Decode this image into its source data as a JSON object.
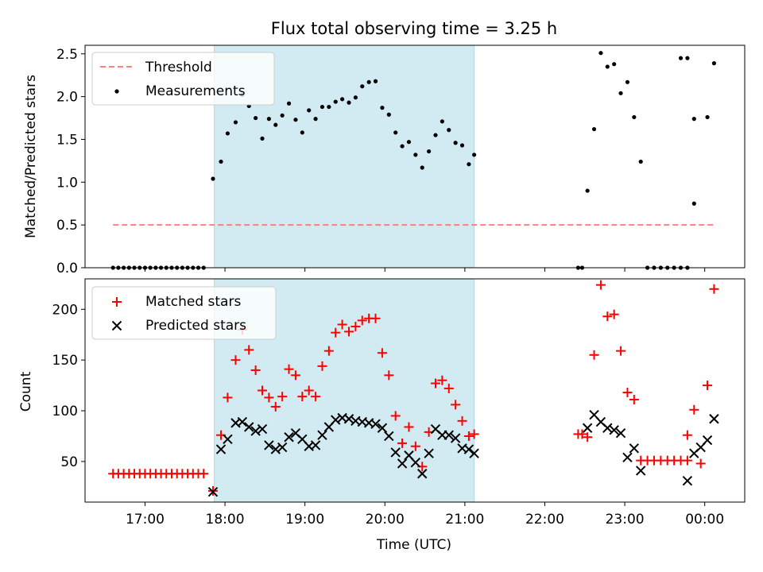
{
  "title": "Flux total observing time = 3.25 h",
  "colors": {
    "threshold": "#ff7f7f",
    "measurement": "#000000",
    "matched": "#ff0000",
    "predicted": "#000000",
    "shade": "#add8e6"
  },
  "chart_data": [
    {
      "type": "scatter",
      "panel": "top",
      "ylabel": "Matched/Predicted stars",
      "xlim": [
        "16:15",
        "00:30"
      ],
      "ylim": [
        0,
        2.6
      ],
      "yticks": [
        "0.0",
        "0.5",
        "1.0",
        "1.5",
        "2.0",
        "2.5"
      ],
      "shaded_interval": [
        "17:52",
        "21:07"
      ],
      "legend": {
        "position": "top-left",
        "entries": [
          {
            "label": "Threshold",
            "style": "dashed-line"
          },
          {
            "label": "Measurements",
            "style": "dot"
          }
        ]
      },
      "threshold": {
        "value": 0.5,
        "x_range": [
          "16:36",
          "00:08"
        ]
      },
      "series": [
        {
          "name": "Measurements",
          "points": [
            [
              "16:36",
              0
            ],
            [
              "16:40",
              0
            ],
            [
              "16:44",
              0
            ],
            [
              "16:48",
              0
            ],
            [
              "16:52",
              0
            ],
            [
              "16:56",
              0
            ],
            [
              "17:00",
              0
            ],
            [
              "17:04",
              0
            ],
            [
              "17:08",
              0
            ],
            [
              "17:12",
              0
            ],
            [
              "17:16",
              0
            ],
            [
              "17:20",
              0
            ],
            [
              "17:24",
              0
            ],
            [
              "17:28",
              0
            ],
            [
              "17:32",
              0
            ],
            [
              "17:36",
              0
            ],
            [
              "17:40",
              0
            ],
            [
              "17:44",
              0
            ],
            [
              "17:51",
              1.04
            ],
            [
              "17:57",
              1.24
            ],
            [
              "18:02",
              1.57
            ],
            [
              "18:08",
              1.7
            ],
            [
              "18:13",
              2.02
            ],
            [
              "18:18",
              1.89
            ],
            [
              "18:23",
              1.75
            ],
            [
              "18:28",
              1.51
            ],
            [
              "18:33",
              1.74
            ],
            [
              "18:38",
              1.67
            ],
            [
              "18:43",
              1.78
            ],
            [
              "18:48",
              1.92
            ],
            [
              "18:53",
              1.73
            ],
            [
              "18:58",
              1.58
            ],
            [
              "19:03",
              1.84
            ],
            [
              "19:08",
              1.74
            ],
            [
              "19:13",
              1.88
            ],
            [
              "19:18",
              1.88
            ],
            [
              "19:23",
              1.94
            ],
            [
              "19:28",
              1.97
            ],
            [
              "19:33",
              1.93
            ],
            [
              "19:38",
              1.99
            ],
            [
              "19:43",
              2.12
            ],
            [
              "19:48",
              2.17
            ],
            [
              "19:53",
              2.18
            ],
            [
              "19:58",
              1.87
            ],
            [
              "20:03",
              1.79
            ],
            [
              "20:08",
              1.58
            ],
            [
              "20:13",
              1.42
            ],
            [
              "20:18",
              1.47
            ],
            [
              "20:23",
              1.32
            ],
            [
              "20:28",
              1.17
            ],
            [
              "20:33",
              1.36
            ],
            [
              "20:38",
              1.55
            ],
            [
              "20:43",
              1.71
            ],
            [
              "20:48",
              1.61
            ],
            [
              "20:53",
              1.46
            ],
            [
              "20:58",
              1.43
            ],
            [
              "21:03",
              1.21
            ],
            [
              "21:07",
              1.32
            ],
            [
              "22:25",
              0
            ],
            [
              "22:28",
              0
            ],
            [
              "22:32",
              0.9
            ],
            [
              "22:37",
              1.62
            ],
            [
              "22:42",
              2.51
            ],
            [
              "22:47",
              2.35
            ],
            [
              "22:52",
              2.38
            ],
            [
              "22:57",
              2.04
            ],
            [
              "23:02",
              2.17
            ],
            [
              "23:07",
              1.76
            ],
            [
              "23:12",
              1.24
            ],
            [
              "23:17",
              0
            ],
            [
              "23:22",
              0
            ],
            [
              "23:27",
              0
            ],
            [
              "23:32",
              0
            ],
            [
              "23:37",
              0
            ],
            [
              "23:42",
              0
            ],
            [
              "23:47",
              0
            ],
            [
              "23:52",
              0.75
            ],
            [
              "23:47",
              2.45
            ],
            [
              "23:42",
              2.45
            ],
            [
              "23:52",
              1.74
            ],
            [
              "24:02",
              1.76
            ],
            [
              "24:07",
              2.39
            ]
          ]
        }
      ]
    },
    {
      "type": "scatter",
      "panel": "bottom",
      "xlabel": "Time (UTC)",
      "ylabel": "Count",
      "xlim": [
        "16:15",
        "00:30"
      ],
      "ylim": [
        10,
        230
      ],
      "xticks": [
        "17:00",
        "18:00",
        "19:00",
        "20:00",
        "21:00",
        "22:00",
        "23:00",
        "00:00"
      ],
      "yticks": [
        "50",
        "100",
        "150",
        "200"
      ],
      "shaded_interval": [
        "17:52",
        "21:07"
      ],
      "legend": {
        "position": "top-left",
        "entries": [
          {
            "label": "Matched stars",
            "style": "plus"
          },
          {
            "label": "Predicted stars",
            "style": "cross"
          }
        ]
      },
      "series": [
        {
          "name": "Matched stars",
          "points": [
            [
              "16:36",
              38
            ],
            [
              "16:40",
              38
            ],
            [
              "16:44",
              38
            ],
            [
              "16:48",
              38
            ],
            [
              "16:52",
              38
            ],
            [
              "16:56",
              38
            ],
            [
              "17:00",
              38
            ],
            [
              "17:04",
              38
            ],
            [
              "17:08",
              38
            ],
            [
              "17:12",
              38
            ],
            [
              "17:16",
              38
            ],
            [
              "17:20",
              38
            ],
            [
              "17:24",
              38
            ],
            [
              "17:28",
              38
            ],
            [
              "17:32",
              38
            ],
            [
              "17:36",
              38
            ],
            [
              "17:40",
              38
            ],
            [
              "17:44",
              38
            ],
            [
              "17:51",
              21
            ],
            [
              "17:57",
              76
            ],
            [
              "18:02",
              113
            ],
            [
              "18:08",
              150
            ],
            [
              "18:13",
              180
            ],
            [
              "18:18",
              160
            ],
            [
              "18:23",
              140
            ],
            [
              "18:28",
              120
            ],
            [
              "18:33",
              113
            ],
            [
              "18:38",
              104
            ],
            [
              "18:43",
              114
            ],
            [
              "18:48",
              141
            ],
            [
              "18:53",
              135
            ],
            [
              "18:58",
              114
            ],
            [
              "19:03",
              120
            ],
            [
              "19:08",
              114
            ],
            [
              "19:13",
              144
            ],
            [
              "19:18",
              159
            ],
            [
              "19:23",
              177
            ],
            [
              "19:28",
              185
            ],
            [
              "19:33",
              178
            ],
            [
              "19:38",
              183
            ],
            [
              "19:43",
              189
            ],
            [
              "19:48",
              191
            ],
            [
              "19:53",
              191
            ],
            [
              "19:58",
              157
            ],
            [
              "20:03",
              135
            ],
            [
              "20:08",
              95
            ],
            [
              "20:13",
              68
            ],
            [
              "20:18",
              84
            ],
            [
              "20:23",
              65
            ],
            [
              "20:28",
              45
            ],
            [
              "20:33",
              79
            ],
            [
              "20:38",
              127
            ],
            [
              "20:43",
              130
            ],
            [
              "20:48",
              122
            ],
            [
              "20:53",
              106
            ],
            [
              "20:58",
              90
            ],
            [
              "21:03",
              75
            ],
            [
              "21:07",
              77
            ],
            [
              "22:25",
              77
            ],
            [
              "22:28",
              77
            ],
            [
              "22:32",
              74
            ],
            [
              "22:37",
              155
            ],
            [
              "22:42",
              224
            ],
            [
              "22:47",
              193
            ],
            [
              "22:52",
              195
            ],
            [
              "22:57",
              159
            ],
            [
              "23:02",
              118
            ],
            [
              "23:07",
              111
            ],
            [
              "23:12",
              51
            ],
            [
              "23:17",
              51
            ],
            [
              "23:22",
              51
            ],
            [
              "23:27",
              51
            ],
            [
              "23:32",
              51
            ],
            [
              "23:37",
              51
            ],
            [
              "23:42",
              51
            ],
            [
              "23:47",
              51
            ],
            [
              "23:47",
              76
            ],
            [
              "23:52",
              101
            ],
            [
              "23:57",
              48
            ],
            [
              "24:02",
              125
            ],
            [
              "24:07",
              220
            ]
          ]
        },
        {
          "name": "Predicted stars",
          "points": [
            [
              "17:51",
              20
            ],
            [
              "17:57",
              62
            ],
            [
              "18:02",
              72
            ],
            [
              "18:08",
              88
            ],
            [
              "18:13",
              89
            ],
            [
              "18:18",
              84
            ],
            [
              "18:23",
              80
            ],
            [
              "18:28",
              82
            ],
            [
              "18:33",
              66
            ],
            [
              "18:38",
              62
            ],
            [
              "18:43",
              64
            ],
            [
              "18:48",
              74
            ],
            [
              "18:53",
              78
            ],
            [
              "18:58",
              72
            ],
            [
              "19:03",
              65
            ],
            [
              "19:08",
              66
            ],
            [
              "19:13",
              76
            ],
            [
              "19:18",
              84
            ],
            [
              "19:23",
              91
            ],
            [
              "19:28",
              93
            ],
            [
              "19:33",
              92
            ],
            [
              "19:38",
              90
            ],
            [
              "19:43",
              89
            ],
            [
              "19:48",
              88
            ],
            [
              "19:53",
              87
            ],
            [
              "19:58",
              83
            ],
            [
              "20:03",
              75
            ],
            [
              "20:08",
              59
            ],
            [
              "20:13",
              48
            ],
            [
              "20:18",
              56
            ],
            [
              "20:23",
              49
            ],
            [
              "20:28",
              38
            ],
            [
              "20:33",
              58
            ],
            [
              "20:38",
              82
            ],
            [
              "20:43",
              76
            ],
            [
              "20:48",
              76
            ],
            [
              "20:53",
              73
            ],
            [
              "20:58",
              63
            ],
            [
              "21:03",
              62
            ],
            [
              "21:07",
              58
            ],
            [
              "22:32",
              83
            ],
            [
              "22:37",
              96
            ],
            [
              "22:42",
              89
            ],
            [
              "22:47",
              83
            ],
            [
              "22:52",
              81
            ],
            [
              "22:57",
              78
            ],
            [
              "23:02",
              54
            ],
            [
              "23:07",
              63
            ],
            [
              "23:12",
              41
            ],
            [
              "23:47",
              31
            ],
            [
              "23:52",
              58
            ],
            [
              "23:57",
              64
            ],
            [
              "24:02",
              71
            ],
            [
              "24:07",
              92
            ]
          ]
        }
      ]
    }
  ]
}
